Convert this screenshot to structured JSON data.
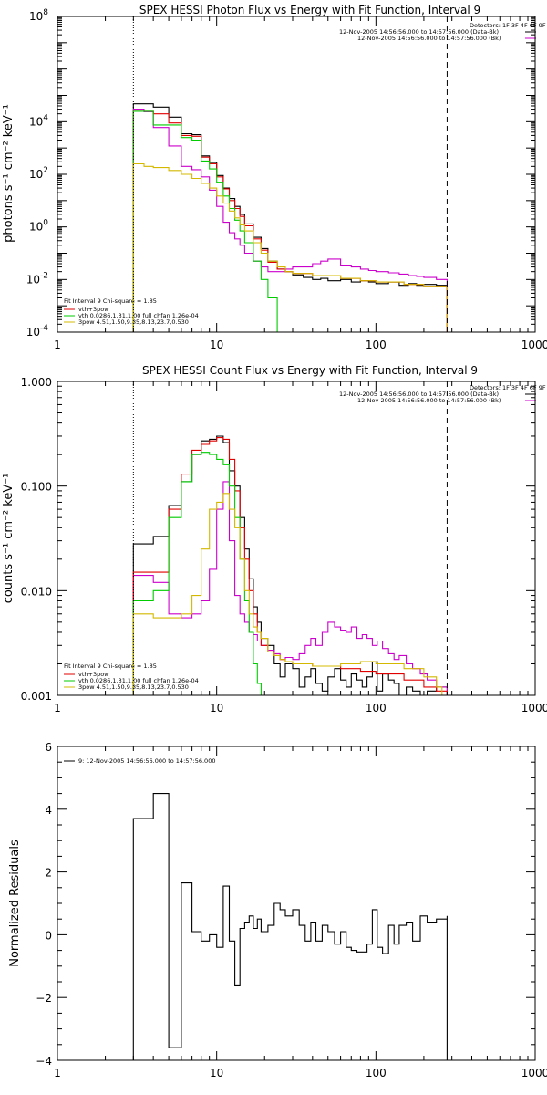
{
  "chart_data": [
    {
      "type": "line",
      "title": "SPEX HESSI Photon Flux vs Energy with Fit Function, Interval 9",
      "ylabel": "photons s⁻¹ cm⁻² keV⁻¹",
      "xscale": "log",
      "yscale": "log",
      "xlim": [
        1,
        1000
      ],
      "ylim": [
        0.0001,
        100000000
      ],
      "xticks": [
        {
          "v": 1,
          "label": "1"
        },
        {
          "v": 10,
          "label": "10"
        },
        {
          "v": 100,
          "label": "100"
        },
        {
          "v": 1000,
          "label": "1000"
        }
      ],
      "yticks": [
        {
          "v": 0.0001,
          "b": "10",
          "e": "-4"
        },
        {
          "v": 0.01,
          "b": "10",
          "e": "-2"
        },
        {
          "v": 1,
          "b": "10",
          "e": "0"
        },
        {
          "v": 100,
          "b": "10",
          "e": "2"
        },
        {
          "v": 10000,
          "b": "10",
          "e": "4"
        },
        {
          "v": 100000000,
          "b": "10",
          "e": "8"
        }
      ],
      "vlines": [
        {
          "x": 3,
          "style": "dotted"
        },
        {
          "x": 280,
          "style": "dashed"
        }
      ],
      "legend_right": {
        "header": "Detectors: 1F 3F 4F 6F 9F",
        "entries": [
          {
            "text": "12-Nov-2005 14:56:56.000 to 14:57:56.000 (Data-Bk)",
            "color": "#000000"
          },
          {
            "text": "12-Nov-2005 14:56:56.000 to 14:57:56.000 (Bk)",
            "color": "#cc00cc"
          }
        ]
      },
      "legend_left": {
        "header": "Fit Interval 9   Chi-square = 1.85",
        "entries": [
          {
            "text": "vth+3pow",
            "color": "#e00000"
          },
          {
            "text": "vth 0.0286,1.31,1.00  full chfan 1.26e-04",
            "color": "#00cc00"
          },
          {
            "text": "3pow 4.51,1.50,9.85,8.13,23.7,0.530",
            "color": "#d4b800"
          }
        ]
      },
      "series": [
        {
          "key": "data",
          "color": "#000000",
          "step": true,
          "x": [
            3,
            3.5,
            4,
            5,
            6,
            7,
            8,
            9,
            10,
            11,
            12,
            13,
            14,
            15,
            17,
            19,
            21,
            24,
            27,
            30,
            35,
            40,
            45,
            50,
            60,
            70,
            80,
            90,
            100,
            120,
            140,
            160,
            180,
            200,
            240,
            280
          ],
          "y": [
            48000,
            48000,
            36000,
            15000,
            3500,
            3200,
            500,
            280,
            90,
            30,
            12,
            6,
            3,
            1.3,
            0.4,
            0.15,
            0.05,
            0.025,
            0.02,
            0.015,
            0.012,
            0.01,
            0.011,
            0.009,
            0.01,
            0.008,
            0.009,
            0.008,
            0.007,
            0.008,
            0.006,
            0.007,
            0.006,
            0.0065,
            0.006,
            0.006
          ]
        },
        {
          "key": "bk",
          "color": "#cc00cc",
          "step": true,
          "x": [
            3,
            3.5,
            4,
            5,
            6,
            7,
            8,
            9,
            10,
            11,
            12,
            13,
            14,
            15,
            17,
            19,
            21,
            24,
            27,
            30,
            35,
            40,
            45,
            50,
            60,
            70,
            80,
            90,
            100,
            120,
            140,
            160,
            180,
            200,
            240,
            280
          ],
          "y": [
            30000,
            24000,
            6000,
            1200,
            200,
            150,
            80,
            25,
            6,
            1.5,
            0.6,
            0.35,
            0.2,
            0.1,
            0.05,
            0.03,
            0.02,
            0.02,
            0.025,
            0.03,
            0.03,
            0.04,
            0.05,
            0.06,
            0.035,
            0.03,
            0.025,
            0.022,
            0.02,
            0.018,
            0.016,
            0.014,
            0.013,
            0.012,
            0.01,
            0.01
          ]
        },
        {
          "key": "vth+3pow",
          "color": "#e00000",
          "step": true,
          "x": [
            3,
            3.5,
            4,
            5,
            6,
            7,
            8,
            9,
            10,
            11,
            12,
            13,
            14,
            15,
            17,
            19,
            21,
            24,
            27,
            30,
            40,
            60,
            80,
            100,
            150,
            200,
            280
          ],
          "y": [
            25000,
            25000,
            20000,
            9000,
            3000,
            2800,
            450,
            250,
            80,
            28,
            10,
            5,
            2.5,
            1.1,
            0.35,
            0.13,
            0.045,
            0.025,
            0.02,
            0.017,
            0.014,
            0.011,
            0.009,
            0.008,
            0.0065,
            0.0055,
            0.0045
          ]
        },
        {
          "key": "vth",
          "color": "#00cc00",
          "step": true,
          "x": [
            3,
            3.5,
            4,
            5,
            6,
            7,
            8,
            9,
            10,
            11,
            12,
            13,
            14,
            15,
            17,
            19,
            21,
            24,
            25
          ],
          "y": [
            25000,
            25000,
            7500,
            7500,
            2500,
            2000,
            320,
            160,
            50,
            15,
            5,
            1.8,
            0.7,
            0.25,
            0.05,
            0.01,
            0.002,
            0.0001,
            0.0001
          ]
        },
        {
          "key": "3pow",
          "color": "#d4b800",
          "step": true,
          "x": [
            3,
            3.5,
            4,
            5,
            6,
            7,
            8,
            9,
            10,
            11,
            12,
            13,
            14,
            15,
            17,
            19,
            21,
            24,
            27,
            30,
            40,
            60,
            80,
            100,
            150,
            200,
            280
          ],
          "y": [
            250,
            200,
            180,
            140,
            100,
            70,
            45,
            30,
            15,
            8,
            4,
            2.2,
            1.2,
            0.7,
            0.25,
            0.1,
            0.05,
            0.03,
            0.02,
            0.017,
            0.014,
            0.011,
            0.009,
            0.008,
            0.0065,
            0.0055,
            0.0045
          ]
        }
      ]
    },
    {
      "type": "line",
      "title": "SPEX HESSI Count Flux vs Energy with Fit Function, Interval 9",
      "ylabel": "counts s⁻¹ cm⁻² keV⁻¹",
      "xscale": "log",
      "yscale": "log",
      "xlim": [
        1,
        1000
      ],
      "ylim": [
        0.001,
        1
      ],
      "xticks": [
        {
          "v": 1,
          "label": "1"
        },
        {
          "v": 10,
          "label": "10"
        },
        {
          "v": 100,
          "label": "100"
        },
        {
          "v": 1000,
          "label": "1000"
        }
      ],
      "yticks": [
        {
          "v": 0.001,
          "label": "0.001"
        },
        {
          "v": 0.01,
          "label": "0.010"
        },
        {
          "v": 0.1,
          "label": "0.100"
        },
        {
          "v": 1,
          "label": "1.000"
        }
      ],
      "vlines": [
        {
          "x": 3,
          "style": "dotted"
        },
        {
          "x": 280,
          "style": "dashed"
        }
      ],
      "legend_right": {
        "header": "Detectors: 1F 3F 4F 6F 9F",
        "entries": [
          {
            "text": "12-Nov-2005 14:56:56.000 to 14:57:56.000 (Data-Bk)",
            "color": "#000000"
          },
          {
            "text": "12-Nov-2005 14:56:56.000 to 14:57:56.000 (Bk)",
            "color": "#cc00cc"
          }
        ]
      },
      "legend_left": {
        "header": "Fit Interval 9   Chi-square = 1.85",
        "entries": [
          {
            "text": "vth+3pow",
            "color": "#e00000"
          },
          {
            "text": "vth 0.0286,1.31,1.00  full chfan 1.26e-04",
            "color": "#00cc00"
          },
          {
            "text": "3pow 4.51,1.50,9.85,8.13,23.7,0.530",
            "color": "#d4b800"
          }
        ]
      },
      "series": [
        {
          "key": "data",
          "color": "#000000",
          "step": true,
          "x": [
            3,
            4,
            5,
            6,
            7,
            8,
            9,
            10,
            11,
            12,
            13,
            14,
            15,
            16,
            17,
            18,
            19,
            21,
            23,
            25,
            27,
            30,
            33,
            36,
            39,
            42,
            46,
            50,
            55,
            60,
            65,
            70,
            76,
            82,
            88,
            95,
            102,
            110,
            120,
            130,
            140,
            155,
            170,
            190,
            210,
            240,
            280
          ],
          "y": [
            0.028,
            0.033,
            0.065,
            0.11,
            0.2,
            0.27,
            0.28,
            0.3,
            0.26,
            0.14,
            0.1,
            0.05,
            0.025,
            0.013,
            0.007,
            0.005,
            0.0035,
            0.003,
            0.002,
            0.0015,
            0.002,
            0.0018,
            0.0012,
            0.0015,
            0.0018,
            0.0013,
            0.0011,
            0.0015,
            0.0018,
            0.0014,
            0.0012,
            0.0016,
            0.0014,
            0.0012,
            0.0015,
            0.0021,
            0.0011,
            0.0016,
            0.0014,
            0.0013,
            0.001,
            0.0012,
            0.0011,
            0.001,
            0.0011,
            0.0012,
            0.0012
          ]
        },
        {
          "key": "bk",
          "color": "#cc00cc",
          "step": true,
          "x": [
            3,
            4,
            5,
            6,
            7,
            8,
            9,
            10,
            11,
            12,
            13,
            14,
            15,
            16,
            17,
            18,
            19,
            21,
            23,
            25,
            27,
            30,
            33,
            36,
            39,
            42,
            46,
            50,
            55,
            60,
            65,
            70,
            76,
            82,
            88,
            95,
            102,
            110,
            120,
            130,
            140,
            155,
            170,
            190,
            210,
            240,
            280
          ],
          "y": [
            0.014,
            0.012,
            0.006,
            0.0055,
            0.006,
            0.008,
            0.016,
            0.06,
            0.11,
            0.03,
            0.009,
            0.006,
            0.005,
            0.004,
            0.0038,
            0.0033,
            0.003,
            0.0027,
            0.0025,
            0.0022,
            0.0023,
            0.0022,
            0.0025,
            0.003,
            0.0035,
            0.003,
            0.004,
            0.005,
            0.0045,
            0.0042,
            0.004,
            0.0045,
            0.0035,
            0.0038,
            0.0035,
            0.003,
            0.0033,
            0.0028,
            0.0025,
            0.0022,
            0.0024,
            0.002,
            0.0018,
            0.0016,
            0.0014,
            0.0012,
            0.0012
          ]
        },
        {
          "key": "vth+3pow",
          "color": "#e00000",
          "step": true,
          "x": [
            3,
            4,
            5,
            6,
            7,
            8,
            9,
            10,
            11,
            12,
            13,
            14,
            15,
            16,
            17,
            18,
            19,
            21,
            23,
            25,
            27,
            30,
            40,
            60,
            80,
            100,
            150,
            200,
            240,
            280
          ],
          "y": [
            0.015,
            0.015,
            0.06,
            0.13,
            0.22,
            0.25,
            0.27,
            0.29,
            0.28,
            0.18,
            0.09,
            0.04,
            0.02,
            0.01,
            0.006,
            0.004,
            0.003,
            0.0026,
            0.0024,
            0.0022,
            0.0021,
            0.002,
            0.0019,
            0.0018,
            0.0017,
            0.0016,
            0.0014,
            0.0012,
            0.0011,
            0.0011
          ]
        },
        {
          "key": "vth",
          "color": "#00cc00",
          "step": true,
          "x": [
            3,
            4,
            5,
            6,
            7,
            8,
            9,
            10,
            11,
            12,
            13,
            14,
            15,
            16,
            17,
            18,
            19,
            20
          ],
          "y": [
            0.008,
            0.01,
            0.05,
            0.11,
            0.2,
            0.21,
            0.2,
            0.18,
            0.16,
            0.1,
            0.05,
            0.02,
            0.008,
            0.004,
            0.002,
            0.0013,
            0.001,
            0.001
          ]
        },
        {
          "key": "3pow",
          "color": "#d4b800",
          "step": true,
          "x": [
            3,
            4,
            5,
            6,
            7,
            8,
            9,
            10,
            11,
            12,
            13,
            14,
            15,
            16,
            17,
            18,
            19,
            21,
            23,
            25,
            27,
            30,
            40,
            60,
            80,
            100,
            150,
            200,
            240,
            260
          ],
          "y": [
            0.006,
            0.0055,
            0.0055,
            0.006,
            0.009,
            0.025,
            0.06,
            0.07,
            0.085,
            0.06,
            0.04,
            0.02,
            0.01,
            0.006,
            0.0045,
            0.004,
            0.0035,
            0.0026,
            0.0024,
            0.0022,
            0.0021,
            0.002,
            0.0019,
            0.002,
            0.0021,
            0.002,
            0.0018,
            0.0015,
            0.0012,
            0.001
          ]
        }
      ]
    },
    {
      "type": "line",
      "title": "",
      "ylabel": "Normalized Residuals",
      "xscale": "log",
      "yscale": "linear",
      "xlim": [
        1,
        1000
      ],
      "ylim": [
        -4,
        6
      ],
      "xticks": [
        {
          "v": 1,
          "label": "1"
        },
        {
          "v": 10,
          "label": "10"
        },
        {
          "v": 100,
          "label": "100"
        },
        {
          "v": 1000,
          "label": "1000"
        }
      ],
      "yticks": [
        {
          "v": -4,
          "label": "−4"
        },
        {
          "v": -2,
          "label": "−2"
        },
        {
          "v": 0,
          "label": "0"
        },
        {
          "v": 2,
          "label": "2"
        },
        {
          "v": 4,
          "label": "4"
        },
        {
          "v": 6,
          "label": "6"
        }
      ],
      "legend_top": {
        "text": "9: 12-Nov-2005 14:56:56.000 to 14:57:56.000",
        "color": "#000000"
      },
      "series": [
        {
          "key": "residuals",
          "color": "#000000",
          "step": true,
          "x": [
            3,
            4,
            5,
            6,
            7,
            8,
            9,
            10,
            11,
            12,
            13,
            14,
            15,
            16,
            17,
            18,
            19,
            21,
            23,
            25,
            27,
            30,
            33,
            36,
            39,
            42,
            46,
            50,
            55,
            60,
            65,
            70,
            76,
            82,
            88,
            95,
            102,
            110,
            120,
            130,
            140,
            155,
            170,
            190,
            210,
            240,
            280
          ],
          "y": [
            3.7,
            4.5,
            -3.6,
            1.65,
            0.1,
            -0.2,
            0,
            -0.4,
            1.55,
            -0.2,
            -1.6,
            0.2,
            0.4,
            0.6,
            0.2,
            0.5,
            0.1,
            0.3,
            1,
            0.8,
            0.6,
            0.8,
            0.3,
            -0.2,
            0.4,
            -0.2,
            0.3,
            0.1,
            -0.3,
            0.1,
            -0.4,
            -0.5,
            -0.55,
            -0.55,
            -0.3,
            0.8,
            -0.4,
            -0.6,
            0.3,
            -0.3,
            0.3,
            0.4,
            -0.2,
            0.6,
            0.4,
            0.5,
            0.6
          ]
        }
      ]
    }
  ]
}
